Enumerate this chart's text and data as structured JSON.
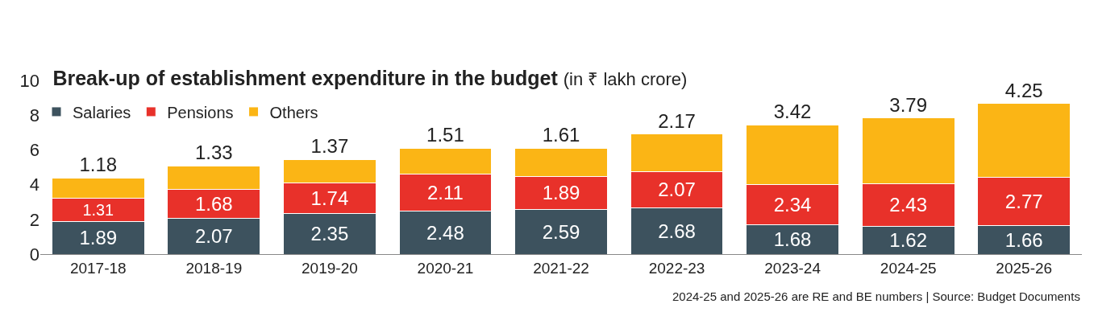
{
  "chart_data": {
    "type": "bar",
    "stacked": true,
    "title": "Break-up of establishment expenditure in the budget",
    "subtitle": "(in ₹ lakh crore)",
    "categories": [
      "2017-18",
      "2018-19",
      "2019-20",
      "2020-21",
      "2021-22",
      "2022-23",
      "2023-24",
      "2024-25",
      "2025-26"
    ],
    "series": [
      {
        "name": "Salaries",
        "color": "#3d525e",
        "values": [
          1.89,
          2.07,
          2.35,
          2.48,
          2.59,
          2.68,
          1.68,
          1.62,
          1.66
        ]
      },
      {
        "name": "Pensions",
        "color": "#e8312a",
        "values": [
          1.31,
          1.68,
          1.74,
          2.11,
          1.89,
          2.07,
          2.34,
          2.43,
          2.77
        ]
      },
      {
        "name": "Others",
        "color": "#fbb515",
        "values": [
          1.18,
          1.33,
          1.37,
          1.51,
          1.61,
          2.17,
          3.42,
          3.79,
          4.25
        ]
      }
    ],
    "ylim": [
      0,
      10
    ],
    "yticks": [
      0,
      2,
      4,
      6,
      8,
      10
    ],
    "legend": "top left",
    "data_labels": true,
    "annotations": [
      "2024-25 and 2025-26 are RE and BE numbers | Source: Budget Documents"
    ]
  }
}
